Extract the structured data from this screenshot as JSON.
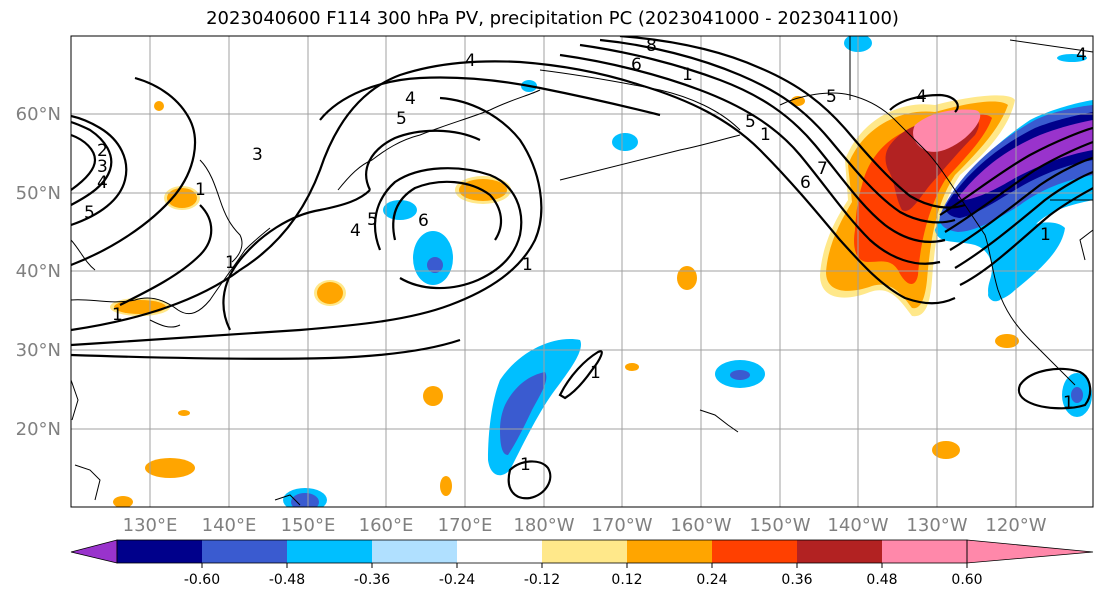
{
  "title": "2023040600 F114 300 hPa PV, precipitation PC (2023041000 - 2023041100)",
  "latitude_labels": [
    "60°N",
    "50°N",
    "40°N",
    "30°N",
    "20°N"
  ],
  "longitude_labels": [
    "130°E",
    "140°E",
    "150°E",
    "160°E",
    "170°E",
    "180°W",
    "170°W",
    "160°W",
    "150°W",
    "140°W",
    "130°W",
    "120°W"
  ],
  "colorbar": {
    "colors": [
      "#9933cc",
      "#00008b",
      "#3a5bd0",
      "#00bfff",
      "#b0e0ff",
      "#ffffff",
      "#ffe88a",
      "#ffa500",
      "#ff4000",
      "#b22222",
      "#ff88aa"
    ],
    "tick_labels": [
      "-0.60",
      "-0.48",
      "-0.36",
      "-0.24",
      "-0.12",
      "0.12",
      "0.24",
      "0.36",
      "0.48",
      "0.60"
    ]
  },
  "contour_labels": [
    "1",
    "1",
    "1",
    "1",
    "1",
    "1",
    "1",
    "2",
    "3",
    "4",
    "4",
    "4",
    "4",
    "4",
    "5",
    "5",
    "5",
    "5",
    "6",
    "6",
    "7",
    "6",
    "3",
    "4",
    "5",
    "1",
    "1",
    "1",
    "8"
  ]
}
